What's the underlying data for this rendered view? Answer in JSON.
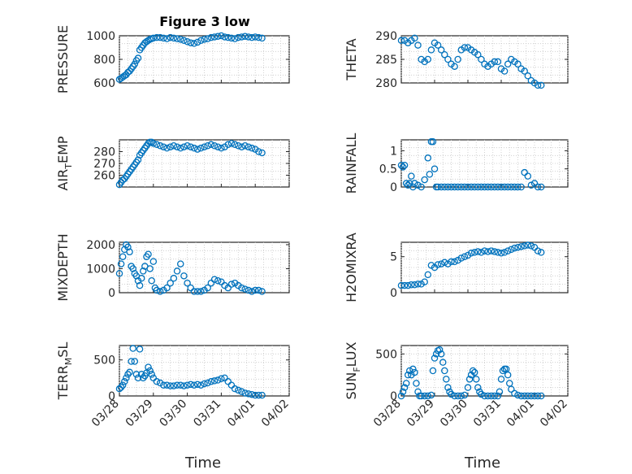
{
  "figure": {
    "title": "Figure 3 low",
    "xlabel_left": "Time",
    "xlabel_right": "Time",
    "marker_color": "#0072bd"
  },
  "chart_data": [
    {
      "type": "scatter",
      "ylabel": "PRESSURE",
      "ylabel_sub": "",
      "ylabel_suffix": "",
      "ylim": [
        600,
        1000
      ],
      "yticks": [
        600,
        800,
        1000
      ],
      "xlim": [
        "03/28",
        "04/02"
      ],
      "xticks": [
        "03/28",
        "03/29",
        "03/30",
        "03/31",
        "04/01",
        "04/02"
      ],
      "grid": true,
      "series": [
        {
          "t": [
            0.0,
            0.05,
            0.1,
            0.15,
            0.2,
            0.25,
            0.3,
            0.35,
            0.4,
            0.45,
            0.5,
            0.55,
            0.6,
            0.65,
            0.7,
            0.75,
            0.8,
            0.85,
            0.9,
            0.95,
            1.0,
            1.1,
            1.2,
            1.3,
            1.4,
            1.5,
            1.6,
            1.7,
            1.8,
            1.9,
            2.0,
            2.1,
            2.2,
            2.3,
            2.4,
            2.5,
            2.6,
            2.7,
            2.8,
            2.9,
            3.0,
            3.1,
            3.2,
            3.3,
            3.4,
            3.5,
            3.6,
            3.7,
            3.8,
            3.9,
            4.0,
            4.1,
            4.2
          ],
          "y": [
            630,
            640,
            650,
            660,
            670,
            690,
            700,
            720,
            740,
            760,
            790,
            810,
            880,
            900,
            920,
            940,
            950,
            960,
            970,
            975,
            980,
            985,
            985,
            980,
            975,
            985,
            980,
            975,
            970,
            960,
            950,
            940,
            935,
            945,
            960,
            970,
            975,
            985,
            990,
            995,
            1000,
            990,
            985,
            980,
            975,
            985,
            990,
            995,
            990,
            985,
            990,
            985,
            980
          ]
        }
      ]
    },
    {
      "type": "scatter",
      "ylabel": "THETA",
      "ylabel_sub": "",
      "ylabel_suffix": "",
      "ylim": [
        280,
        290
      ],
      "yticks": [
        280,
        285,
        290
      ],
      "xlim": [
        "03/28",
        "04/02"
      ],
      "xticks": [
        "03/28",
        "03/29",
        "03/30",
        "03/31",
        "04/01",
        "04/02"
      ],
      "grid": true,
      "series": [
        {
          "t": [
            0.0,
            0.1,
            0.2,
            0.3,
            0.4,
            0.5,
            0.6,
            0.7,
            0.8,
            0.9,
            1.0,
            1.1,
            1.2,
            1.3,
            1.4,
            1.5,
            1.6,
            1.7,
            1.8,
            1.9,
            2.0,
            2.1,
            2.2,
            2.3,
            2.4,
            2.5,
            2.6,
            2.7,
            2.8,
            2.9,
            3.0,
            3.1,
            3.2,
            3.3,
            3.4,
            3.5,
            3.6,
            3.7,
            3.8,
            3.9,
            4.0,
            4.1,
            4.2
          ],
          "y": [
            289,
            289,
            288.5,
            289,
            289.5,
            288,
            285,
            284.5,
            285,
            287,
            288.5,
            288,
            287,
            286,
            285,
            284,
            283.5,
            285,
            287,
            287.5,
            287.5,
            287,
            286.5,
            286,
            285,
            284,
            283.5,
            284,
            284.5,
            284.5,
            283,
            282.5,
            284,
            285,
            284.5,
            284,
            283,
            282.5,
            281.5,
            280.5,
            280,
            279.5,
            279.5
          ]
        }
      ]
    },
    {
      "type": "scatter",
      "ylabel": "AIR",
      "ylabel_sub": "T",
      "ylabel_suffix": "EMP",
      "ylim": [
        250,
        290
      ],
      "yticks": [
        260,
        270,
        280
      ],
      "xlim": [
        "03/28",
        "04/02"
      ],
      "xticks": [
        "03/28",
        "03/29",
        "03/30",
        "03/31",
        "04/01",
        "04/02"
      ],
      "grid": true,
      "series": [
        {
          "t": [
            0.0,
            0.05,
            0.1,
            0.15,
            0.2,
            0.25,
            0.3,
            0.35,
            0.4,
            0.45,
            0.5,
            0.55,
            0.6,
            0.65,
            0.7,
            0.75,
            0.8,
            0.85,
            0.9,
            0.95,
            1.0,
            1.1,
            1.2,
            1.3,
            1.4,
            1.5,
            1.6,
            1.7,
            1.8,
            1.9,
            2.0,
            2.1,
            2.2,
            2.3,
            2.4,
            2.5,
            2.6,
            2.7,
            2.8,
            2.9,
            3.0,
            3.1,
            3.2,
            3.3,
            3.4,
            3.5,
            3.6,
            3.7,
            3.8,
            3.9,
            4.0,
            4.1,
            4.2
          ],
          "y": [
            252,
            254,
            256,
            257,
            259,
            261,
            263,
            265,
            267,
            269,
            271,
            273,
            277,
            279,
            281,
            283,
            285,
            287,
            288,
            288,
            287,
            286,
            285,
            284,
            283,
            284,
            285,
            284,
            283,
            284,
            285,
            284,
            283,
            282,
            283,
            284,
            285,
            286,
            285,
            284,
            283,
            284,
            286,
            287,
            286,
            285,
            284,
            285,
            284,
            283,
            282,
            280,
            279
          ]
        }
      ]
    },
    {
      "type": "scatter",
      "ylabel": "RAINFALL",
      "ylabel_sub": "",
      "ylabel_suffix": "",
      "ylim": [
        0,
        1.3
      ],
      "yticks": [
        0,
        0.5,
        1
      ],
      "xlim": [
        "03/28",
        "04/02"
      ],
      "xticks": [
        "03/28",
        "03/29",
        "03/30",
        "03/31",
        "04/01",
        "04/02"
      ],
      "grid": true,
      "series": [
        {
          "t": [
            0.0,
            0.05,
            0.1,
            0.15,
            0.2,
            0.25,
            0.3,
            0.35,
            0.4,
            0.5,
            0.6,
            0.7,
            0.8,
            0.85,
            0.9,
            0.95,
            1.0,
            1.05,
            1.1,
            1.2,
            1.3,
            1.4,
            1.5,
            1.6,
            1.7,
            1.8,
            1.9,
            2.0,
            2.1,
            2.2,
            2.3,
            2.4,
            2.5,
            2.6,
            2.7,
            2.8,
            2.9,
            3.0,
            3.1,
            3.2,
            3.3,
            3.4,
            3.5,
            3.6,
            3.7,
            3.8,
            3.9,
            4.0,
            4.1,
            4.2
          ],
          "y": [
            0.6,
            0.55,
            0.6,
            0.1,
            0.05,
            0.1,
            0.3,
            0.0,
            0.1,
            0.05,
            0.0,
            0.2,
            0.8,
            0.35,
            1.25,
            1.25,
            0.5,
            0.0,
            0.0,
            0.0,
            0.0,
            0.0,
            0.0,
            0.0,
            0.0,
            0.0,
            0.0,
            0.0,
            0.0,
            0.0,
            0.0,
            0.0,
            0.0,
            0.0,
            0.0,
            0.0,
            0.0,
            0.0,
            0.0,
            0.0,
            0.0,
            0.0,
            0.0,
            0.0,
            0.4,
            0.3,
            0.05,
            0.1,
            0.0,
            0.0
          ]
        }
      ]
    },
    {
      "type": "scatter",
      "ylabel": "MIXDEPTH",
      "ylabel_sub": "",
      "ylabel_suffix": "",
      "ylim": [
        0,
        2100
      ],
      "yticks": [
        0,
        1000,
        2000
      ],
      "xlim": [
        "03/28",
        "04/02"
      ],
      "xticks": [
        "03/28",
        "03/29",
        "03/30",
        "03/31",
        "04/01",
        "04/02"
      ],
      "grid": true,
      "series": [
        {
          "t": [
            0.0,
            0.05,
            0.1,
            0.15,
            0.2,
            0.25,
            0.3,
            0.35,
            0.4,
            0.45,
            0.5,
            0.55,
            0.6,
            0.65,
            0.7,
            0.75,
            0.8,
            0.85,
            0.9,
            0.95,
            1.0,
            1.05,
            1.1,
            1.2,
            1.3,
            1.4,
            1.5,
            1.6,
            1.7,
            1.8,
            1.9,
            2.0,
            2.1,
            2.2,
            2.3,
            2.4,
            2.5,
            2.6,
            2.7,
            2.8,
            2.9,
            3.0,
            3.1,
            3.2,
            3.3,
            3.4,
            3.5,
            3.6,
            3.7,
            3.8,
            3.9,
            4.0,
            4.1,
            4.2
          ],
          "y": [
            800,
            1200,
            1500,
            1800,
            2000,
            1900,
            1700,
            1100,
            1000,
            800,
            700,
            500,
            300,
            600,
            900,
            1100,
            1500,
            1600,
            1000,
            500,
            1300,
            200,
            100,
            50,
            100,
            200,
            400,
            600,
            900,
            1200,
            700,
            400,
            200,
            50,
            50,
            50,
            100,
            200,
            400,
            550,
            500,
            450,
            300,
            200,
            350,
            400,
            300,
            200,
            150,
            100,
            50,
            100,
            100,
            50
          ]
        }
      ]
    },
    {
      "type": "scatter",
      "ylabel": "H2OMIXRA",
      "ylabel_sub": "",
      "ylabel_suffix": "",
      "ylim": [
        0,
        7
      ],
      "yticks": [
        0,
        5
      ],
      "xlim": [
        "03/28",
        "04/02"
      ],
      "xticks": [
        "03/28",
        "03/29",
        "03/30",
        "03/31",
        "04/01",
        "04/02"
      ],
      "grid": true,
      "series": [
        {
          "t": [
            0.0,
            0.1,
            0.2,
            0.3,
            0.4,
            0.5,
            0.6,
            0.7,
            0.8,
            0.9,
            1.0,
            1.1,
            1.2,
            1.3,
            1.4,
            1.5,
            1.6,
            1.7,
            1.8,
            1.9,
            2.0,
            2.1,
            2.2,
            2.3,
            2.4,
            2.5,
            2.6,
            2.7,
            2.8,
            2.9,
            3.0,
            3.1,
            3.2,
            3.3,
            3.4,
            3.5,
            3.6,
            3.7,
            3.8,
            3.9,
            4.0,
            4.1,
            4.2
          ],
          "y": [
            1.0,
            1.0,
            1.0,
            1.1,
            1.1,
            1.2,
            1.2,
            1.5,
            2.5,
            3.8,
            3.5,
            3.9,
            4.0,
            4.2,
            4.0,
            4.3,
            4.3,
            4.5,
            4.8,
            5.0,
            5.2,
            5.5,
            5.6,
            5.7,
            5.6,
            5.8,
            5.7,
            5.8,
            5.7,
            5.6,
            5.5,
            5.6,
            5.8,
            6.0,
            6.2,
            6.3,
            6.4,
            6.5,
            6.6,
            6.5,
            6.3,
            5.8,
            5.6
          ]
        }
      ]
    },
    {
      "type": "scatter",
      "ylabel": "TERR",
      "ylabel_sub": "M",
      "ylabel_suffix": "SL",
      "ylim": [
        0,
        700
      ],
      "yticks": [
        0,
        500
      ],
      "xlim": [
        "03/28",
        "04/02"
      ],
      "xticks": [
        "03/28",
        "03/29",
        "03/30",
        "03/31",
        "04/01",
        "04/02"
      ],
      "grid": true,
      "series": [
        {
          "t": [
            0.0,
            0.05,
            0.1,
            0.15,
            0.2,
            0.25,
            0.3,
            0.35,
            0.4,
            0.45,
            0.5,
            0.55,
            0.6,
            0.65,
            0.7,
            0.75,
            0.8,
            0.85,
            0.9,
            0.95,
            1.0,
            1.1,
            1.2,
            1.3,
            1.4,
            1.5,
            1.6,
            1.7,
            1.8,
            1.9,
            2.0,
            2.1,
            2.2,
            2.3,
            2.4,
            2.5,
            2.6,
            2.7,
            2.8,
            2.9,
            3.0,
            3.1,
            3.2,
            3.3,
            3.4,
            3.5,
            3.6,
            3.7,
            3.8,
            3.9,
            4.0,
            4.1,
            4.2
          ],
          "y": [
            100,
            120,
            150,
            200,
            250,
            300,
            330,
            480,
            660,
            480,
            300,
            250,
            650,
            300,
            250,
            280,
            320,
            400,
            350,
            300,
            250,
            200,
            180,
            150,
            150,
            140,
            140,
            150,
            150,
            140,
            150,
            160,
            150,
            160,
            150,
            170,
            180,
            200,
            210,
            220,
            240,
            250,
            200,
            150,
            100,
            80,
            60,
            40,
            30,
            20,
            10,
            10,
            10
          ]
        }
      ]
    },
    {
      "type": "scatter",
      "ylabel": "SUN",
      "ylabel_sub": "F",
      "ylabel_suffix": "LUX",
      "ylim": [
        0,
        600
      ],
      "yticks": [
        0,
        500
      ],
      "xlim": [
        "03/28",
        "04/02"
      ],
      "xticks": [
        "03/28",
        "03/29",
        "03/30",
        "03/31",
        "04/01",
        "04/02"
      ],
      "grid": true,
      "series": [
        {
          "t": [
            0.0,
            0.05,
            0.1,
            0.15,
            0.2,
            0.25,
            0.3,
            0.35,
            0.4,
            0.45,
            0.5,
            0.55,
            0.6,
            0.7,
            0.8,
            0.9,
            0.95,
            1.0,
            1.05,
            1.1,
            1.15,
            1.2,
            1.25,
            1.3,
            1.35,
            1.4,
            1.45,
            1.5,
            1.6,
            1.7,
            1.8,
            1.9,
            2.0,
            2.05,
            2.1,
            2.15,
            2.2,
            2.25,
            2.3,
            2.35,
            2.4,
            2.5,
            2.6,
            2.7,
            2.8,
            2.9,
            2.95,
            3.0,
            3.05,
            3.1,
            3.15,
            3.2,
            3.25,
            3.3,
            3.4,
            3.5,
            3.6,
            3.7,
            3.8,
            3.9,
            4.0,
            4.1,
            4.2
          ],
          "y": [
            0,
            50,
            100,
            150,
            250,
            300,
            250,
            320,
            280,
            150,
            50,
            0,
            0,
            0,
            0,
            10,
            300,
            450,
            500,
            540,
            550,
            500,
            400,
            300,
            200,
            100,
            50,
            20,
            0,
            0,
            0,
            10,
            100,
            200,
            250,
            300,
            280,
            200,
            100,
            50,
            20,
            0,
            0,
            0,
            0,
            0,
            50,
            200,
            300,
            320,
            320,
            250,
            150,
            80,
            30,
            10,
            0,
            0,
            0,
            0,
            0,
            0,
            0
          ]
        }
      ]
    }
  ]
}
